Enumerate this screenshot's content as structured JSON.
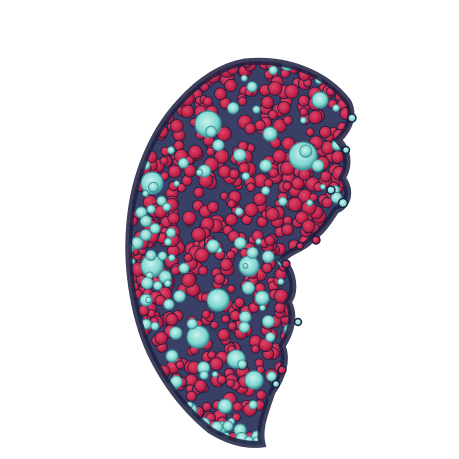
{
  "image": {
    "subject": "stained-cell-cluster",
    "colors": {
      "background": "#ffffff",
      "membrane": "#2b2f52",
      "membrane_dark": "#1c2040",
      "matrix": "#3a3f66",
      "red_cell": "#c2234a",
      "red_cell_dark": "#8e1535",
      "red_cell_highlight": "#e04568",
      "cyan_vacuole": "#7fd6cf",
      "cyan_vacuole_light": "#c9f3ef",
      "cyan_vacuole_edge": "#3f8f95"
    }
  }
}
